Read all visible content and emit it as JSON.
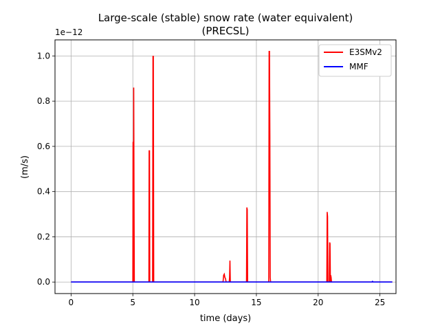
{
  "chart_data": {
    "type": "line",
    "title": "Large-scale (stable) snow rate (water equivalent)",
    "subtitle": "(PRECSL)",
    "xlabel": "time (days)",
    "ylabel": "(m/s)",
    "y_offset_label": "1e−12",
    "xlim": [
      -1.3,
      26.3
    ],
    "ylim": [
      -0.051,
      1.071
    ],
    "xticks": [
      0,
      5,
      10,
      15,
      20,
      25
    ],
    "xtick_labels": [
      "0",
      "5",
      "10",
      "15",
      "20",
      "25"
    ],
    "yticks": [
      0.0,
      0.2,
      0.4,
      0.6,
      0.8,
      1.0
    ],
    "ytick_labels": [
      "0.0",
      "0.2",
      "0.4",
      "0.6",
      "0.8",
      "1.0"
    ],
    "grid": true,
    "legend_position": "upper-right",
    "series": [
      {
        "name": "E3SMv2",
        "color": "#ff0000",
        "x": [
          0,
          5.0,
          5.02,
          5.05,
          5.07,
          5.1,
          5.12,
          5.14,
          5.16,
          5.2,
          6.3,
          6.32,
          6.35,
          6.37,
          6.4,
          6.6,
          6.63,
          6.66,
          6.69,
          6.72,
          12.3,
          12.35,
          12.4,
          12.45,
          12.5,
          12.55,
          12.6,
          12.8,
          12.83,
          12.86,
          12.89,
          12.92,
          14.2,
          14.23,
          14.26,
          14.29,
          14.32,
          16.0,
          16.03,
          16.06,
          16.09,
          16.12,
          16.15,
          16.18,
          20.7,
          20.73,
          20.76,
          20.79,
          20.82,
          20.9,
          20.93,
          20.96,
          20.99,
          21.02,
          21.05,
          21.08,
          21.11,
          26.0
        ],
        "values": [
          0,
          0,
          0.62,
          0.0,
          0.86,
          0.3,
          0.0,
          0.0,
          0.0,
          0.0,
          0,
          0.58,
          0.58,
          0.0,
          0.0,
          0,
          0.998,
          0.998,
          0.0,
          0.0,
          0,
          0.03,
          0.035,
          0.02,
          0.015,
          0.0,
          0.0,
          0,
          0.02,
          0.095,
          0.0,
          0.0,
          0,
          0.33,
          0.32,
          0.0,
          0.0,
          0,
          1.02,
          1.02,
          0.65,
          0.02,
          0.0,
          0.0,
          0,
          0.31,
          0.29,
          0.0,
          0.0,
          0,
          0.175,
          0.17,
          0.0,
          0.03,
          0.02,
          0.0,
          0.0,
          0
        ]
      },
      {
        "name": "MMF",
        "color": "#0000ff",
        "x": [
          0,
          24.35,
          24.4,
          24.45,
          26.0
        ],
        "values": [
          0,
          0,
          0.003,
          0,
          0
        ]
      }
    ]
  }
}
